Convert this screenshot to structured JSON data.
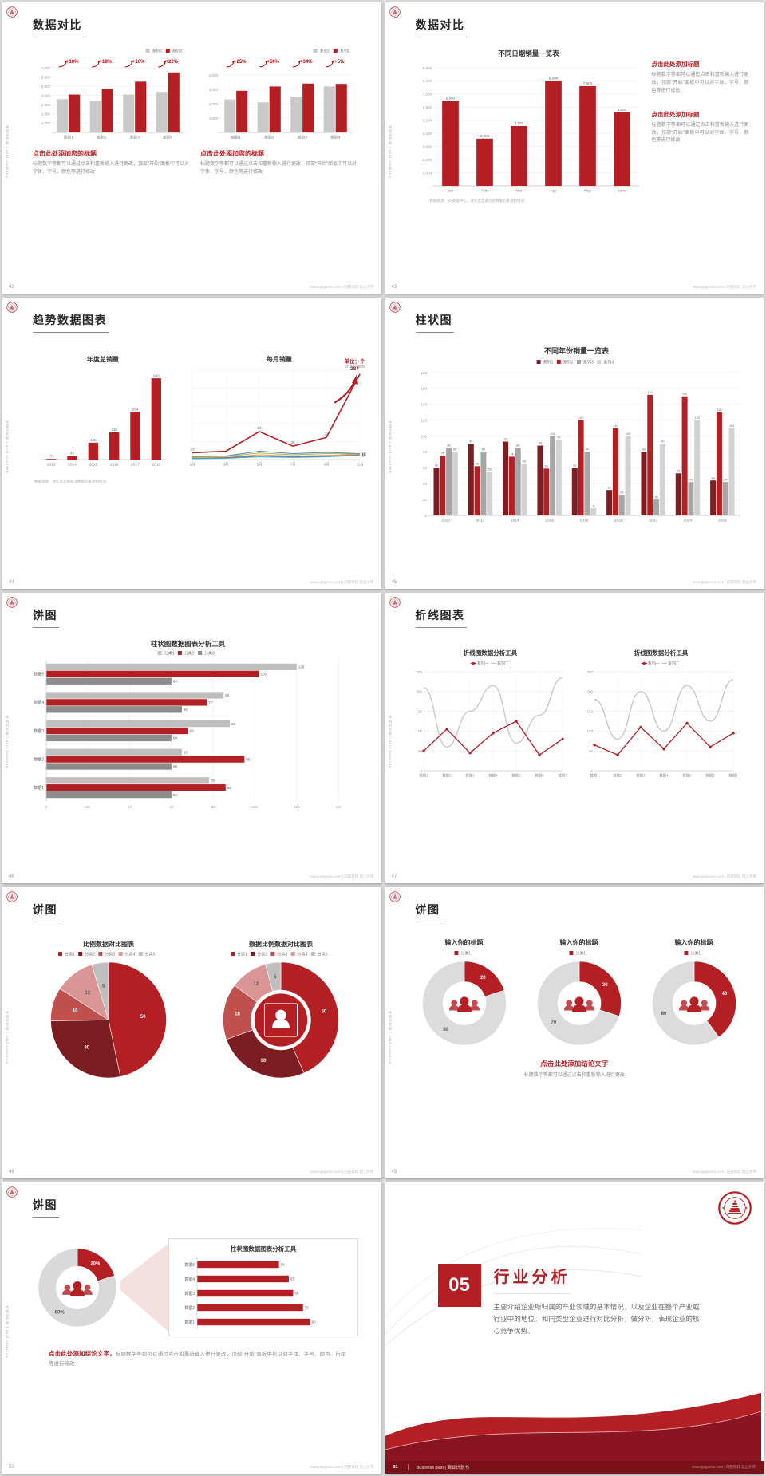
{
  "common": {
    "sidebar_text": "Business plan | 商业计划书",
    "footer": "www.pptgonsu.com | 内部资料 禁止外传",
    "colors": {
      "accent": "#b41f24",
      "dark_red": "#7c1d22",
      "gray_bar": "#c9c9c9"
    }
  },
  "slides": [
    {
      "page": "42",
      "title": "数据对比",
      "blocks": [
        {
          "heading": "点击此处添加您的标题",
          "body": "标题数字等都可以通过点击和重新输入进行更改，顶部“开始”面板中可以对字体、字号、颜色等进行修改"
        },
        {
          "heading": "点击此处添加您的标题",
          "body": "标题数字等都可以通过点击和重新输入进行更改，顶部“开始”面板中可以对字体、字号、颜色等进行修改"
        }
      ],
      "charts": [
        {
          "type": "bar",
          "yMax": 7000,
          "yFmt": "comma",
          "yTicks": [
            7000,
            6000,
            5000,
            4000,
            3000,
            2000,
            1000
          ],
          "legend": [
            {
              "label": "系列1",
              "color": "#c9c9c9"
            },
            {
              "label": "系列2",
              "color": "#b41f24"
            }
          ],
          "legendPos": "right",
          "categories": [
            "类别1",
            "类别2",
            "类别3",
            "类别4"
          ],
          "series": [
            {
              "color": "#c9c9c9",
              "values": [
                3600,
                3400,
                4100,
                4400
              ]
            },
            {
              "color": "#b41f24",
              "values": [
                4100,
                4700,
                5500,
                6500
              ]
            }
          ],
          "annotations": [
            "+10%",
            "+18%",
            "+16%",
            "+22%"
          ]
        },
        {
          "type": "bar",
          "yMax": 4500,
          "yFmt": "comma",
          "yTicks": [
            4000,
            3000,
            2000,
            1000
          ],
          "legend": [
            {
              "label": "系列1",
              "color": "#c9c9c9"
            },
            {
              "label": "系列2",
              "color": "#b41f24"
            }
          ],
          "legendPos": "right",
          "categories": [
            "类别1",
            "类别2",
            "类别3",
            "类别4"
          ],
          "series": [
            {
              "color": "#c9c9c9",
              "values": [
                2300,
                2100,
                2500,
                3200
              ]
            },
            {
              "color": "#b41f24",
              "values": [
                2900,
                3200,
                3400,
                3380
              ]
            }
          ],
          "annotations": [
            "+25%",
            "+50%",
            "+34%",
            "+5%"
          ]
        }
      ]
    },
    {
      "page": "43",
      "title": "数据对比",
      "chart_title": "不同日期销量一览表",
      "note": "数据来源：XX数据中心，请在此显著注明数据的来源和时间",
      "blocks": [
        {
          "heading": "点击此处添加标题",
          "body": "标题数字等都可以通过点击和重新输入进行更改，顶部“开始”面板中可以对字体、字号、颜色等进行修改"
        },
        {
          "heading": "点击此处添加标题",
          "body": "标题数字等都可以通过点击和重新输入进行更改，顶部“开始”面板中可以对字体、字号、颜色等进行修改"
        }
      ],
      "chart": {
        "type": "bar",
        "yMax": 9000,
        "yFmt": "comma",
        "yTicks": [
          9000,
          8000,
          7000,
          6000,
          5000,
          4000,
          3000,
          2000,
          1000
        ],
        "categories": [
          "Jan",
          "Feb",
          "Mar",
          "Apr",
          "May",
          "June"
        ],
        "series": [
          {
            "color": "#b41f24",
            "values": [
              6500,
              3600,
              4560,
              8000,
              7600,
              5600
            ],
            "labels": [
              "6,500",
              "3,600",
              "4,560",
              "8,000",
              "7,600",
              "5,600"
            ]
          }
        ]
      }
    },
    {
      "page": "44",
      "title": "趋势数据图表",
      "unit": "单位：个",
      "unit_sub": "in'000 units",
      "note": "数据来源：请在此显著标注数据的来源和时间",
      "chart_titles": [
        "年度总销量",
        "每月销量"
      ],
      "charts": [
        {
          "type": "bar",
          "yMax": 1000,
          "categories": [
            "2013",
            "2014",
            "2015",
            "2016",
            "2017",
            "2018"
          ],
          "series": [
            {
              "color": "#b41f24",
              "values": [
                7,
                45,
                196,
                316,
                554,
                943
              ],
              "autoLabel": true
            }
          ]
        },
        {
          "type": "line",
          "yMax": 300,
          "rightPad": 18,
          "yGrid": [
            60,
            120,
            180,
            240,
            300
          ],
          "xLabels": [
            "1月",
            "3月",
            "5月",
            "7月",
            "9月",
            "11月"
          ],
          "series": [
            {
              "color": "#b41f24",
              "width": 1.6,
              "values": [
                23,
                28,
                94,
                45,
                74,
                287
              ],
              "labels": [
                "23",
                "",
                "94",
                "45",
                "74",
                ""
              ],
              "peak": "287",
              "arrow": true
            },
            {
              "color": "#4f81bd",
              "values": [
                10,
                12,
                28,
                20,
                24,
                20
              ],
              "endLabel": "20"
            },
            {
              "color": "#9bbb59",
              "values": [
                8,
                10,
                22,
                16,
                20,
                18
              ],
              "endLabel": "18"
            },
            {
              "color": "#f79646",
              "values": [
                5,
                7,
                16,
                12,
                14,
                17
              ],
              "endLabel": "17"
            },
            {
              "color": "#8064a2",
              "values": [
                4,
                6,
                12,
                9,
                11,
                15
              ],
              "endLabel": "15"
            },
            {
              "color": "#4bacc6",
              "values": [
                3,
                4,
                9,
                7,
                9,
                14
              ],
              "endLabel": "14"
            }
          ]
        }
      ]
    },
    {
      "page": "45",
      "title": "柱状图",
      "chart_title": "不同年份销量一览表",
      "chart": {
        "type": "bar",
        "yMax": 180,
        "labelSize": 3.8,
        "yTicks": [
          180,
          160,
          140,
          120,
          100,
          80,
          60,
          40,
          20,
          0
        ],
        "legend": [
          {
            "label": "系列1",
            "color": "#7c1d22"
          },
          {
            "label": "系列2",
            "color": "#b41f24"
          },
          {
            "label": "系列3",
            "color": "#a6a6a6"
          },
          {
            "label": "系列4",
            "color": "#d2d2d2"
          }
        ],
        "categories": [
          "2010",
          "2012",
          "2014",
          "2016",
          "2018",
          "2020",
          "2022",
          "2024",
          "2026"
        ],
        "series": [
          {
            "color": "#7c1d22",
            "values": [
              60,
              90,
              93,
              88,
              60,
              32,
              80,
              53,
              44
            ],
            "autoLabel": true
          },
          {
            "color": "#b41f24",
            "values": [
              75,
              62,
              74,
              59,
              120,
              110,
              152,
              150,
              130
            ],
            "autoLabel": true
          },
          {
            "color": "#a6a6a6",
            "values": [
              85,
              80,
              85,
              100,
              80,
              26,
              20,
              42,
              42
            ],
            "autoLabel": true
          },
          {
            "color": "#d2d2d2",
            "values": [
              80,
              55,
              65,
              95,
              9,
              100,
              90,
              120,
              110
            ],
            "autoLabel": true
          }
        ]
      }
    },
    {
      "page": "46",
      "title": "饼图",
      "chart_title": "柱状图数据图表分析工具",
      "chart": {
        "type": "hbar",
        "xMax": 140,
        "labels": true,
        "xTicks": [
          0,
          20,
          40,
          60,
          80,
          100,
          120,
          140
        ],
        "legend": [
          {
            "label": "分类1",
            "color": "#bfbfbf"
          },
          {
            "label": "分类2",
            "color": "#b41f24"
          },
          {
            "label": "分类3",
            "color": "#8c8c8c"
          }
        ],
        "categories": [
          "数据5",
          "数据4",
          "数据3",
          "数据2",
          "数据1"
        ],
        "series": [
          {
            "color": "#bfbfbf",
            "values": [
              120,
              85,
              88,
              65,
              78
            ],
            "autoLabel": true
          },
          {
            "color": "#b41f24",
            "values": [
              102,
              77,
              68,
              95,
              86
            ],
            "autoLabel": true
          },
          {
            "color": "#8c8c8c",
            "values": [
              60,
              65,
              60,
              60,
              60
            ],
            "autoLabel": true
          }
        ]
      }
    },
    {
      "page": "47",
      "title": "折线图表",
      "panels": [
        {
          "title": "折线图数据分析工具",
          "chart": {
            "type": "line",
            "yMax": 250,
            "yTicks": [
              250,
              200,
              150,
              100,
              50,
              0
            ],
            "legend": [
              {
                "label": "系列一",
                "color": "#b41f24",
                "shape": "line",
                "marker": true
              },
              {
                "label": "系列二",
                "color": "#c8c8c8",
                "shape": "line"
              }
            ],
            "xLabels": [
              "数据1",
              "数据2",
              "数据3",
              "数据4",
              "数据5",
              "数据6",
              "数据7"
            ],
            "series": [
              {
                "color": "#c8c8c8",
                "values": [
                  210,
                  60,
                  150,
                  215,
                  70,
                  140,
                  235
                ],
                "smooth": true,
                "width": 1.4
              },
              {
                "color": "#b41f24",
                "values": [
                  50,
                  105,
                  45,
                  95,
                  125,
                  40,
                  80
                ],
                "dots": true,
                "width": 1.3
              }
            ]
          }
        },
        {
          "title": "折线图数据分析工具",
          "chart": {
            "type": "line",
            "yMax": 250,
            "yTicks": [
              250,
              200,
              150,
              100,
              50,
              0
            ],
            "legend": [
              {
                "label": "系列一",
                "color": "#b41f24",
                "shape": "line",
                "marker": true
              },
              {
                "label": "系列二",
                "color": "#c8c8c8",
                "shape": "line"
              }
            ],
            "xLabels": [
              "数据1",
              "数据2",
              "数据3",
              "数据4",
              "数据5",
              "数据6",
              "数据7"
            ],
            "series": [
              {
                "color": "#c8c8c8",
                "values": [
                  180,
                  80,
                  200,
                  100,
                  215,
                  125,
                  230
                ],
                "smooth": true,
                "width": 1.4
              },
              {
                "color": "#b41f24",
                "values": [
                  65,
                  40,
                  110,
                  55,
                  120,
                  60,
                  95
                ],
                "dots": true,
                "width": 1.3
              }
            ]
          }
        }
      ]
    },
    {
      "page": "48",
      "title": "饼图",
      "panels": [
        {
          "title": "比例数据对比图表",
          "chart": {
            "type": "pie",
            "values": [
              50,
              30,
              10,
              12,
              5
            ],
            "colors": [
              "#b41f24",
              "#7c1d22",
              "#c0504d",
              "#d99694",
              "#bfbfbf"
            ],
            "labels": [
              "50",
              "30",
              "10",
              "12",
              "5"
            ],
            "lightLabel": [
              false,
              false,
              false,
              true,
              true
            ],
            "legend": [
              {
                "label": "分类1",
                "color": "#b41f24"
              },
              {
                "label": "分类2",
                "color": "#7c1d22"
              },
              {
                "label": "分类3",
                "color": "#c0504d"
              },
              {
                "label": "分类4",
                "color": "#d99694"
              },
              {
                "label": "分类5",
                "color": "#bfbfbf"
              }
            ]
          }
        },
        {
          "title": "数据比例数据对比图表",
          "chart": {
            "type": "pie",
            "donut": true,
            "icon": "person-badge",
            "values": [
              50,
              30,
              18,
              12,
              5
            ],
            "colors": [
              "#b41f24",
              "#7c1d22",
              "#c0504d",
              "#d99694",
              "#bfbfbf"
            ],
            "labels": [
              "50",
              "30",
              "18",
              "12",
              "5"
            ],
            "lightLabel": [
              false,
              false,
              false,
              true,
              true
            ],
            "legend": [
              {
                "label": "分类1",
                "color": "#b41f24"
              },
              {
                "label": "分类2",
                "color": "#7c1d22"
              },
              {
                "label": "分类3",
                "color": "#c0504d"
              },
              {
                "label": "分类4",
                "color": "#d99694"
              },
              {
                "label": "分类5",
                "color": "#bfbfbf"
              }
            ]
          }
        }
      ]
    },
    {
      "page": "49",
      "title": "饼图",
      "items": [
        {
          "heading": "输入你的标题",
          "chart": {
            "type": "pie",
            "donut": true,
            "icon": "people",
            "values": [
              20,
              80
            ],
            "colors": [
              "#b41f24",
              "#dcdcdc"
            ],
            "labels": [
              "20",
              "80"
            ],
            "lightLabel": [
              false,
              true
            ],
            "legend": [
              {
                "label": "分类1",
                "color": "#b41f24"
              }
            ]
          }
        },
        {
          "heading": "输入你的标题",
          "chart": {
            "type": "pie",
            "donut": true,
            "icon": "people",
            "values": [
              30,
              70
            ],
            "colors": [
              "#b41f24",
              "#dcdcdc"
            ],
            "labels": [
              "30",
              "70"
            ],
            "lightLabel": [
              false,
              true
            ],
            "legend": [
              {
                "label": "分类1",
                "color": "#b41f24"
              }
            ]
          }
        },
        {
          "heading": "输入你的标题",
          "chart": {
            "type": "pie",
            "donut": true,
            "icon": "people",
            "values": [
              40,
              60
            ],
            "colors": [
              "#b41f24",
              "#dcdcdc"
            ],
            "labels": [
              "40",
              "60"
            ],
            "lightLabel": [
              false,
              true
            ],
            "legend": [
              {
                "label": "分类1",
                "color": "#b41f24"
              }
            ]
          }
        }
      ],
      "conclusion": {
        "heading": "点击此处添加结论文字",
        "body": "标题数字等都可以通过点击和重新输入进行更改"
      }
    },
    {
      "page": "50",
      "title": "饼图",
      "chart": {
        "type": "pie",
        "donut": true,
        "innerRatio": 0.55,
        "icon": "people",
        "values": [
          20,
          80
        ],
        "colors": [
          "#b41f24",
          "#d9d9d9"
        ],
        "labels": [
          "20%",
          "80%"
        ],
        "lightLabel": [
          false,
          true
        ]
      },
      "panel": {
        "title": "柱状图数据图表分析工具",
        "chart": {
          "type": "hbar",
          "xMax": 100,
          "labels": true,
          "categories": [
            "数据5",
            "数据4",
            "数据3",
            "数据2",
            "数据1"
          ],
          "series": [
            {
              "color": "#b41f24",
              "values": [
                58,
                65,
                68,
                75,
                80
              ],
              "autoLabel": true
            }
          ]
        }
      },
      "conclusion": {
        "lead": "点击此处添加结论文字，",
        "body": "标题数字等都可以通过点击和重新输入进行更改，顶部“开始”面板中可以对字体、字号、颜色、行距等进行修改"
      }
    },
    {
      "page": "51",
      "number": "05",
      "title": "行业分析",
      "body": "主要介绍企业所归属的产业领域的基本情况，以及企业在整个产业或行业中的地位。和同类型企业进行对比分析，做分析，表现企业的核心竞争优势。",
      "footer_left": "Business plan | 商业计划书"
    }
  ]
}
